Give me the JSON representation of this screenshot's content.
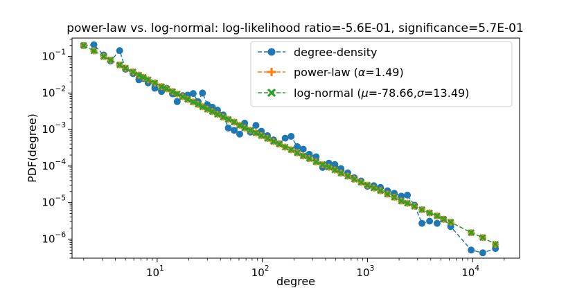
{
  "chart_data": {
    "type": "line",
    "title": "power-law vs. log-normal: log-likelihood ratio=-5.6E-01, significance=5.7E-01",
    "xlabel": "degree",
    "ylabel": "PDF(degree)",
    "xscale": "log",
    "yscale": "log",
    "xlim": [
      1.55,
      28000
    ],
    "ylim": [
      3e-07,
      0.32
    ],
    "x_ticks": [
      {
        "value": 10,
        "base": "10",
        "exp": "1"
      },
      {
        "value": 100,
        "base": "10",
        "exp": "2"
      },
      {
        "value": 1000,
        "base": "10",
        "exp": "3"
      },
      {
        "value": 10000,
        "base": "10",
        "exp": "4"
      }
    ],
    "y_ticks": [
      {
        "value": 0.1,
        "base": "10",
        "exp": "−1"
      },
      {
        "value": 0.01,
        "base": "10",
        "exp": "−2"
      },
      {
        "value": 0.001,
        "base": "10",
        "exp": "−3"
      },
      {
        "value": 0.0001,
        "base": "10",
        "exp": "−4"
      },
      {
        "value": 1e-05,
        "base": "10",
        "exp": "−5"
      },
      {
        "value": 1e-06,
        "base": "10",
        "exp": "−6"
      }
    ],
    "legend_position": "upper-right",
    "grid": false,
    "series": [
      {
        "name": "degree-density",
        "legend_label": "degree-density",
        "color": "#1f77b4",
        "marker": "circle",
        "x": [
          2.0,
          2.5,
          3.1,
          3.6,
          4.4,
          5.0,
          5.9,
          6.7,
          7.4,
          8.2,
          9.5,
          11.0,
          12.3,
          14.0,
          15.5,
          17.5,
          19.5,
          22.0,
          24.5,
          27.0,
          30.0,
          33.5,
          37.5,
          42.5,
          47.5,
          54.0,
          61.0,
          68.0,
          77.0,
          87.0,
          98.0,
          112.0,
          128.0,
          145.0,
          165.0,
          188.0,
          215.0,
          245.0,
          280.0,
          325.0,
          375.0,
          430.0,
          490.0,
          560.0,
          650.0,
          750.0,
          870.0,
          1000.0,
          1150.0,
          1330.0,
          1550.0,
          1800.0,
          2100.0,
          2400.0,
          2800.0,
          3300.0,
          3900.0,
          4600.0,
          5300.0,
          6200.0,
          9700.0,
          12500.0,
          16500.0
        ],
        "y": [
          0.2,
          0.21,
          0.11,
          0.075,
          0.145,
          0.045,
          0.034,
          0.023,
          0.025,
          0.019,
          0.0135,
          0.011,
          0.0135,
          0.0095,
          0.0058,
          0.0085,
          0.0088,
          0.0097,
          0.0058,
          0.01,
          0.0048,
          0.0041,
          0.0034,
          0.0025,
          0.0011,
          0.00095,
          0.00075,
          0.0015,
          0.00085,
          0.0013,
          0.0009,
          0.00068,
          0.00052,
          0.00041,
          0.00058,
          0.00065,
          0.00034,
          0.00029,
          0.00021,
          0.00018,
          9.2e-05,
          0.00012,
          0.00011,
          8.5e-05,
          6.5e-05,
          4.8e-05,
          3.9e-05,
          2.8e-05,
          2.9e-05,
          2.6e-05,
          2.1e-05,
          1.8e-05,
          1.5e-05,
          1.6e-05,
          8.5e-06,
          2.7e-06,
          3.1e-06,
          2.7e-06,
          3.5e-06,
          2.2e-06,
          5e-07,
          4.2e-07,
          5.5e-07
        ]
      },
      {
        "name": "power-law",
        "legend_label": "power-law (",
        "legend_param1": "α",
        "legend_value1": "=1.49)",
        "color": "#ff7f0e",
        "marker": "plus",
        "x": [
          2.0,
          2.5,
          3.1,
          3.6,
          4.4,
          5.0,
          5.9,
          6.7,
          7.4,
          8.2,
          9.5,
          11.0,
          12.3,
          14.0,
          15.5,
          17.5,
          19.5,
          22.0,
          24.5,
          27.0,
          30.0,
          33.5,
          37.5,
          42.5,
          47.5,
          54.0,
          61.0,
          68.0,
          77.0,
          87.0,
          98.0,
          112.0,
          128.0,
          145.0,
          165.0,
          188.0,
          215.0,
          245.0,
          280.0,
          325.0,
          375.0,
          430.0,
          490.0,
          560.0,
          650.0,
          750.0,
          870.0,
          1000.0,
          1150.0,
          1330.0,
          1550.0,
          1800.0,
          2100.0,
          2400.0,
          2800.0,
          3300.0,
          3900.0,
          4600.0,
          5300.0,
          6200.0,
          9700.0,
          12500.0,
          16500.0
        ],
        "y": [
          0.2,
          0.143,
          0.1,
          0.08,
          0.059,
          0.048,
          0.038,
          0.031,
          0.027,
          0.023,
          0.019,
          0.015,
          0.013,
          0.011,
          0.0094,
          0.0079,
          0.0067,
          0.0057,
          0.0049,
          0.0042,
          0.0036,
          0.0031,
          0.0026,
          0.0022,
          0.0019,
          0.0016,
          0.0013,
          0.0011,
          0.00096,
          0.00081,
          0.00068,
          0.00057,
          0.00047,
          0.0004,
          0.00033,
          0.00028,
          0.00023,
          0.00019,
          0.00016,
          0.00013,
          0.00011,
          9.3e-05,
          7.8e-05,
          6.4e-05,
          5.3e-05,
          4.4e-05,
          3.6e-05,
          3e-05,
          2.5e-05,
          2.1e-05,
          1.7e-05,
          1.4e-05,
          1.1e-05,
          9.6e-06,
          7.9e-06,
          6.4e-06,
          5.2e-06,
          4.3e-06,
          3.5e-06,
          2.9e-06,
          1.5e-06,
          1.1e-06,
          7.2e-07
        ]
      },
      {
        "name": "log-normal",
        "legend_label": "log-normal (",
        "legend_param1": "μ",
        "legend_value1": "=-78.66,",
        "legend_param2": "σ",
        "legend_value2": "=13.49)",
        "color": "#2ca02c",
        "marker": "x",
        "x": [
          2.0,
          2.5,
          3.1,
          3.6,
          4.4,
          5.0,
          5.9,
          6.7,
          7.4,
          8.2,
          9.5,
          11.0,
          12.3,
          14.0,
          15.5,
          17.5,
          19.5,
          22.0,
          24.5,
          27.0,
          30.0,
          33.5,
          37.5,
          42.5,
          47.5,
          54.0,
          61.0,
          68.0,
          77.0,
          87.0,
          98.0,
          112.0,
          128.0,
          145.0,
          165.0,
          188.0,
          215.0,
          245.0,
          280.0,
          325.0,
          375.0,
          430.0,
          490.0,
          560.0,
          650.0,
          750.0,
          870.0,
          1000.0,
          1150.0,
          1330.0,
          1550.0,
          1800.0,
          2100.0,
          2400.0,
          2800.0,
          3300.0,
          3900.0,
          4600.0,
          5300.0,
          6200.0,
          9700.0,
          12500.0,
          16500.0
        ],
        "y": [
          0.2,
          0.143,
          0.1,
          0.08,
          0.059,
          0.048,
          0.038,
          0.031,
          0.027,
          0.023,
          0.019,
          0.015,
          0.013,
          0.011,
          0.0094,
          0.0079,
          0.0067,
          0.0057,
          0.0049,
          0.0042,
          0.0036,
          0.0031,
          0.0026,
          0.0022,
          0.0019,
          0.0016,
          0.0013,
          0.0011,
          0.00096,
          0.00081,
          0.00068,
          0.00057,
          0.00047,
          0.0004,
          0.00033,
          0.00028,
          0.00023,
          0.00019,
          0.00016,
          0.00013,
          0.00011,
          9.3e-05,
          7.8e-05,
          6.4e-05,
          5.3e-05,
          4.4e-05,
          3.6e-05,
          3e-05,
          2.5e-05,
          2.1e-05,
          1.7e-05,
          1.4e-05,
          1.1e-05,
          9.6e-06,
          7.9e-06,
          6.4e-06,
          5.2e-06,
          4.3e-06,
          3.5e-06,
          2.9e-06,
          1.5e-06,
          1.1e-06,
          7.2e-07
        ]
      }
    ]
  }
}
